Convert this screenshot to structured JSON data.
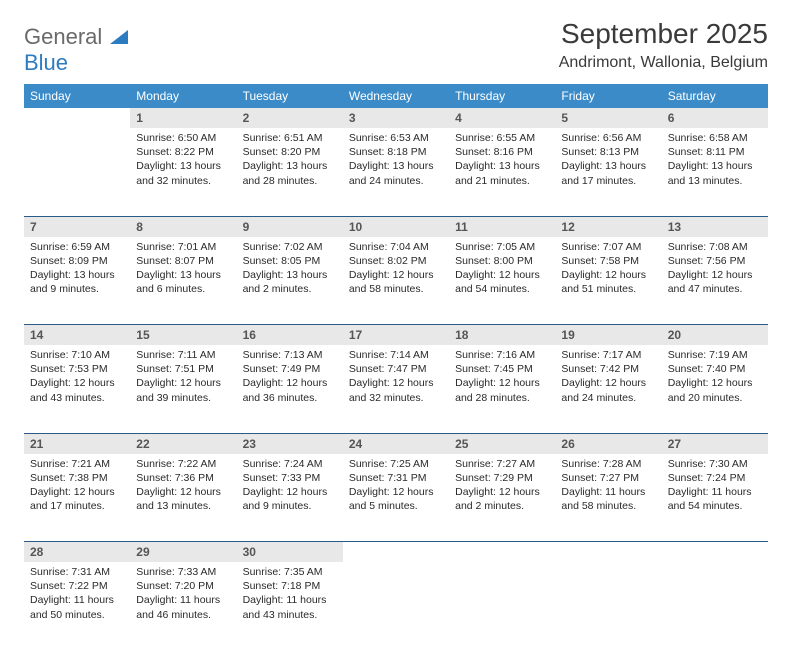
{
  "logo": {
    "text1": "General",
    "text2": "Blue"
  },
  "title": "September 2025",
  "subtitle": "Andrimont, Wallonia, Belgium",
  "colors": {
    "header_bg": "#3b8bc9",
    "header_fg": "#ffffff",
    "daynum_bg": "#e8e8e8",
    "daynum_fg": "#555555",
    "border": "#2a5a8a",
    "text": "#2a2a2a",
    "logo_gray": "#6a6a6a",
    "logo_blue": "#2d7bc0"
  },
  "typography": {
    "title_fontsize": 28,
    "subtitle_fontsize": 16,
    "dayheader_fontsize": 12,
    "cell_fontsize": 10.5,
    "daynum_fontsize": 12
  },
  "layout": {
    "columns": 7,
    "weeks": 5,
    "first_day_col": 1
  },
  "day_headers": [
    "Sunday",
    "Monday",
    "Tuesday",
    "Wednesday",
    "Thursday",
    "Friday",
    "Saturday"
  ],
  "days": [
    {
      "n": "1",
      "sunrise": "6:50 AM",
      "sunset": "8:22 PM",
      "daylight": "13 hours and 32 minutes."
    },
    {
      "n": "2",
      "sunrise": "6:51 AM",
      "sunset": "8:20 PM",
      "daylight": "13 hours and 28 minutes."
    },
    {
      "n": "3",
      "sunrise": "6:53 AM",
      "sunset": "8:18 PM",
      "daylight": "13 hours and 24 minutes."
    },
    {
      "n": "4",
      "sunrise": "6:55 AM",
      "sunset": "8:16 PM",
      "daylight": "13 hours and 21 minutes."
    },
    {
      "n": "5",
      "sunrise": "6:56 AM",
      "sunset": "8:13 PM",
      "daylight": "13 hours and 17 minutes."
    },
    {
      "n": "6",
      "sunrise": "6:58 AM",
      "sunset": "8:11 PM",
      "daylight": "13 hours and 13 minutes."
    },
    {
      "n": "7",
      "sunrise": "6:59 AM",
      "sunset": "8:09 PM",
      "daylight": "13 hours and 9 minutes."
    },
    {
      "n": "8",
      "sunrise": "7:01 AM",
      "sunset": "8:07 PM",
      "daylight": "13 hours and 6 minutes."
    },
    {
      "n": "9",
      "sunrise": "7:02 AM",
      "sunset": "8:05 PM",
      "daylight": "13 hours and 2 minutes."
    },
    {
      "n": "10",
      "sunrise": "7:04 AM",
      "sunset": "8:02 PM",
      "daylight": "12 hours and 58 minutes."
    },
    {
      "n": "11",
      "sunrise": "7:05 AM",
      "sunset": "8:00 PM",
      "daylight": "12 hours and 54 minutes."
    },
    {
      "n": "12",
      "sunrise": "7:07 AM",
      "sunset": "7:58 PM",
      "daylight": "12 hours and 51 minutes."
    },
    {
      "n": "13",
      "sunrise": "7:08 AM",
      "sunset": "7:56 PM",
      "daylight": "12 hours and 47 minutes."
    },
    {
      "n": "14",
      "sunrise": "7:10 AM",
      "sunset": "7:53 PM",
      "daylight": "12 hours and 43 minutes."
    },
    {
      "n": "15",
      "sunrise": "7:11 AM",
      "sunset": "7:51 PM",
      "daylight": "12 hours and 39 minutes."
    },
    {
      "n": "16",
      "sunrise": "7:13 AM",
      "sunset": "7:49 PM",
      "daylight": "12 hours and 36 minutes."
    },
    {
      "n": "17",
      "sunrise": "7:14 AM",
      "sunset": "7:47 PM",
      "daylight": "12 hours and 32 minutes."
    },
    {
      "n": "18",
      "sunrise": "7:16 AM",
      "sunset": "7:45 PM",
      "daylight": "12 hours and 28 minutes."
    },
    {
      "n": "19",
      "sunrise": "7:17 AM",
      "sunset": "7:42 PM",
      "daylight": "12 hours and 24 minutes."
    },
    {
      "n": "20",
      "sunrise": "7:19 AM",
      "sunset": "7:40 PM",
      "daylight": "12 hours and 20 minutes."
    },
    {
      "n": "21",
      "sunrise": "7:21 AM",
      "sunset": "7:38 PM",
      "daylight": "12 hours and 17 minutes."
    },
    {
      "n": "22",
      "sunrise": "7:22 AM",
      "sunset": "7:36 PM",
      "daylight": "12 hours and 13 minutes."
    },
    {
      "n": "23",
      "sunrise": "7:24 AM",
      "sunset": "7:33 PM",
      "daylight": "12 hours and 9 minutes."
    },
    {
      "n": "24",
      "sunrise": "7:25 AM",
      "sunset": "7:31 PM",
      "daylight": "12 hours and 5 minutes."
    },
    {
      "n": "25",
      "sunrise": "7:27 AM",
      "sunset": "7:29 PM",
      "daylight": "12 hours and 2 minutes."
    },
    {
      "n": "26",
      "sunrise": "7:28 AM",
      "sunset": "7:27 PM",
      "daylight": "11 hours and 58 minutes."
    },
    {
      "n": "27",
      "sunrise": "7:30 AM",
      "sunset": "7:24 PM",
      "daylight": "11 hours and 54 minutes."
    },
    {
      "n": "28",
      "sunrise": "7:31 AM",
      "sunset": "7:22 PM",
      "daylight": "11 hours and 50 minutes."
    },
    {
      "n": "29",
      "sunrise": "7:33 AM",
      "sunset": "7:20 PM",
      "daylight": "11 hours and 46 minutes."
    },
    {
      "n": "30",
      "sunrise": "7:35 AM",
      "sunset": "7:18 PM",
      "daylight": "11 hours and 43 minutes."
    }
  ],
  "labels": {
    "sunrise": "Sunrise:",
    "sunset": "Sunset:",
    "daylight": "Daylight:"
  }
}
